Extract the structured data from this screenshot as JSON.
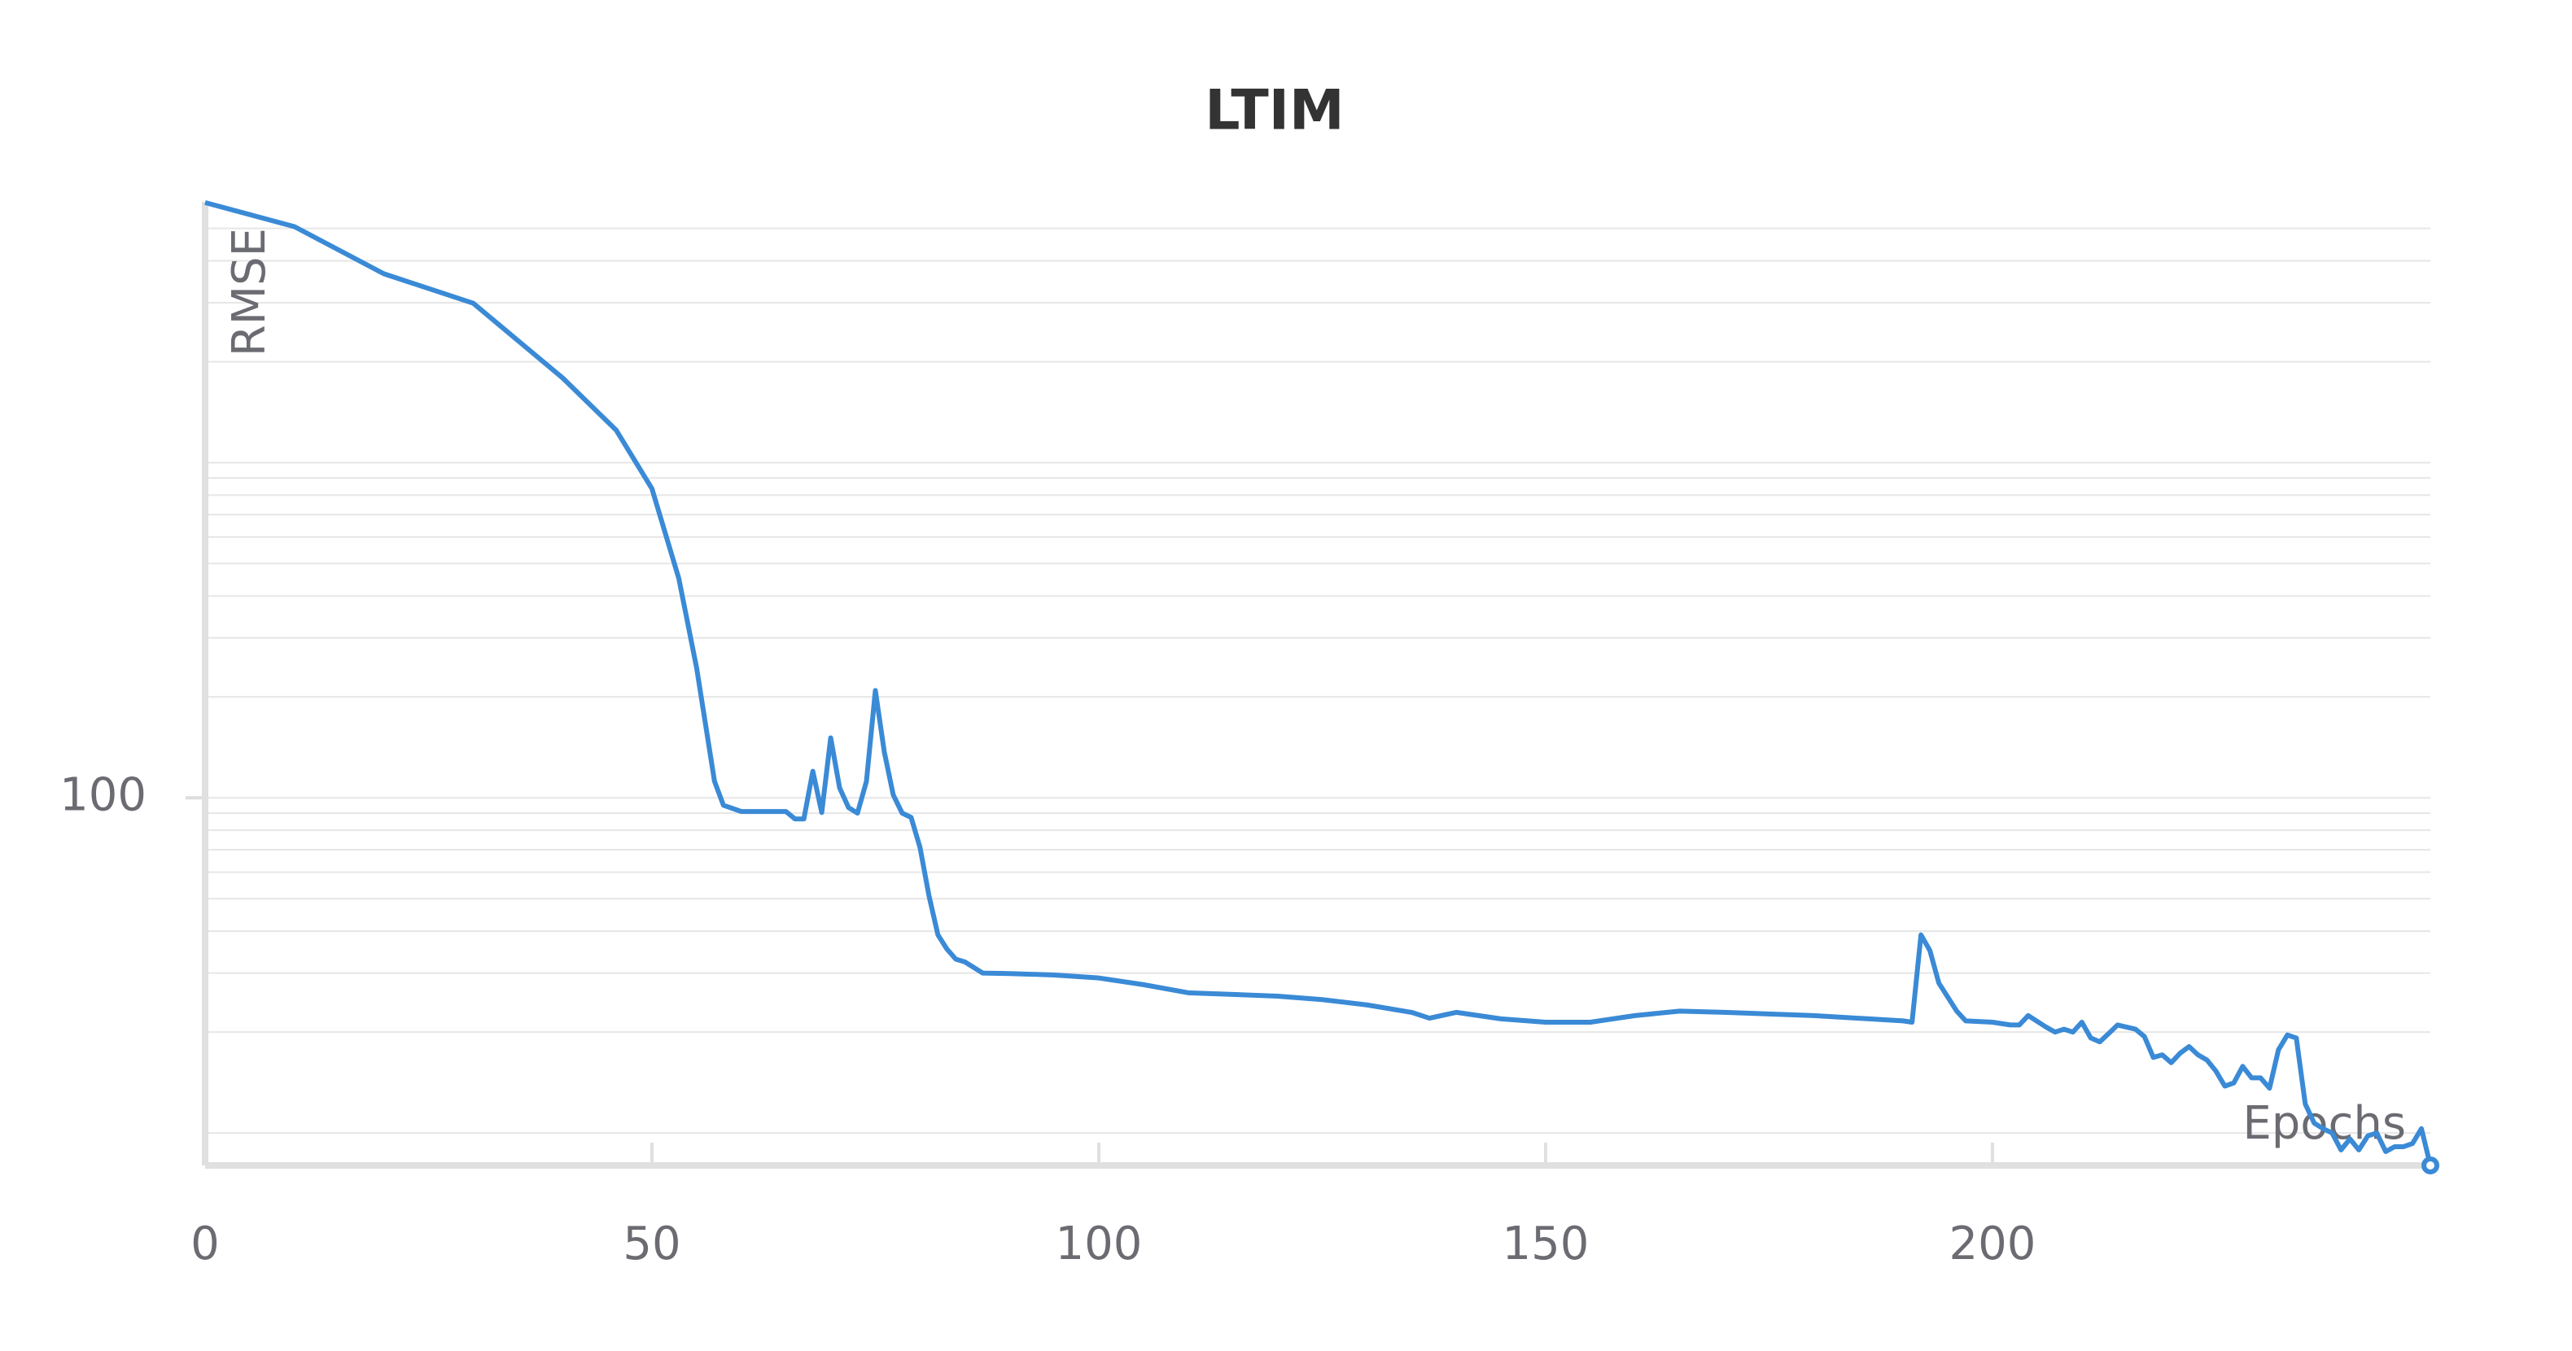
{
  "chart_data": {
    "type": "line",
    "title": "LTIM",
    "x_label": "Epochs",
    "y_label": "RMSE",
    "x": [
      0,
      10,
      20,
      30,
      40,
      46,
      50,
      53,
      55,
      57,
      58,
      60,
      65,
      66,
      67,
      68,
      69,
      70,
      71,
      72,
      73,
      74,
      75,
      76,
      77,
      78,
      79,
      80,
      81,
      82,
      83,
      84,
      85,
      87,
      90,
      95,
      100,
      105,
      110,
      115,
      120,
      125,
      130,
      135,
      137,
      140,
      145,
      150,
      155,
      160,
      165,
      170,
      180,
      190,
      191,
      192,
      193,
      194,
      196,
      197,
      200,
      202,
      203,
      204,
      206,
      207,
      208,
      209,
      210,
      211,
      212,
      213,
      214,
      216,
      217,
      218,
      219,
      220,
      221,
      222,
      223,
      224,
      225,
      226,
      227,
      228,
      229,
      230,
      231,
      232,
      233,
      234,
      235,
      236,
      237,
      238,
      239,
      240,
      241,
      242,
      243,
      244,
      245,
      246,
      247,
      248,
      249
    ],
    "series": [
      {
        "name": "RMSE",
        "color": "#3a8ad6",
        "values": [
          5970,
          5060,
          3660,
          2990,
          1790,
          1250,
          836,
          452,
          244,
          112,
          95,
          91,
          91,
          86.5,
          86.5,
          120,
          90.4,
          151,
          107,
          93.5,
          90,
          112,
          209,
          137,
          102,
          90,
          87.4,
          71,
          51,
          39,
          35.4,
          33,
          32.4,
          30,
          29.9,
          29.6,
          29,
          27.7,
          26.2,
          25.9,
          25.6,
          25,
          24.1,
          22.9,
          22,
          22.9,
          21.9,
          21.4,
          21.4,
          22.4,
          23.1,
          22.9,
          22.4,
          21.6,
          21.4,
          39,
          35,
          28,
          23.1,
          21.6,
          21.4,
          21,
          21,
          22.4,
          20.7,
          20,
          20.4,
          20,
          21.4,
          19.2,
          18.7,
          19.8,
          21,
          20.4,
          19.4,
          16.8,
          17.1,
          16.2,
          17.3,
          18.1,
          17.1,
          16.5,
          15.3,
          13.8,
          14.1,
          15.8,
          14.6,
          14.6,
          13.6,
          17.7,
          19.6,
          19.2,
          12.2,
          10.7,
          10.3,
          10,
          8.9,
          9.6,
          8.9,
          9.8,
          10,
          8.8,
          9.1,
          9.1,
          9.3,
          10.3,
          8
        ]
      }
    ],
    "xlim": [
      0,
      249
    ],
    "xticks": [
      0,
      50,
      100,
      150,
      200
    ],
    "ylim": [
      8,
      6000
    ],
    "yticks": [
      100
    ],
    "y_log": true,
    "grid": true,
    "y_gridlines": [
      10,
      20,
      30,
      40,
      50,
      60,
      70,
      80,
      90,
      100,
      200,
      300,
      400,
      500,
      600,
      700,
      800,
      900,
      1000,
      2000,
      3000,
      4000,
      5000
    ]
  }
}
